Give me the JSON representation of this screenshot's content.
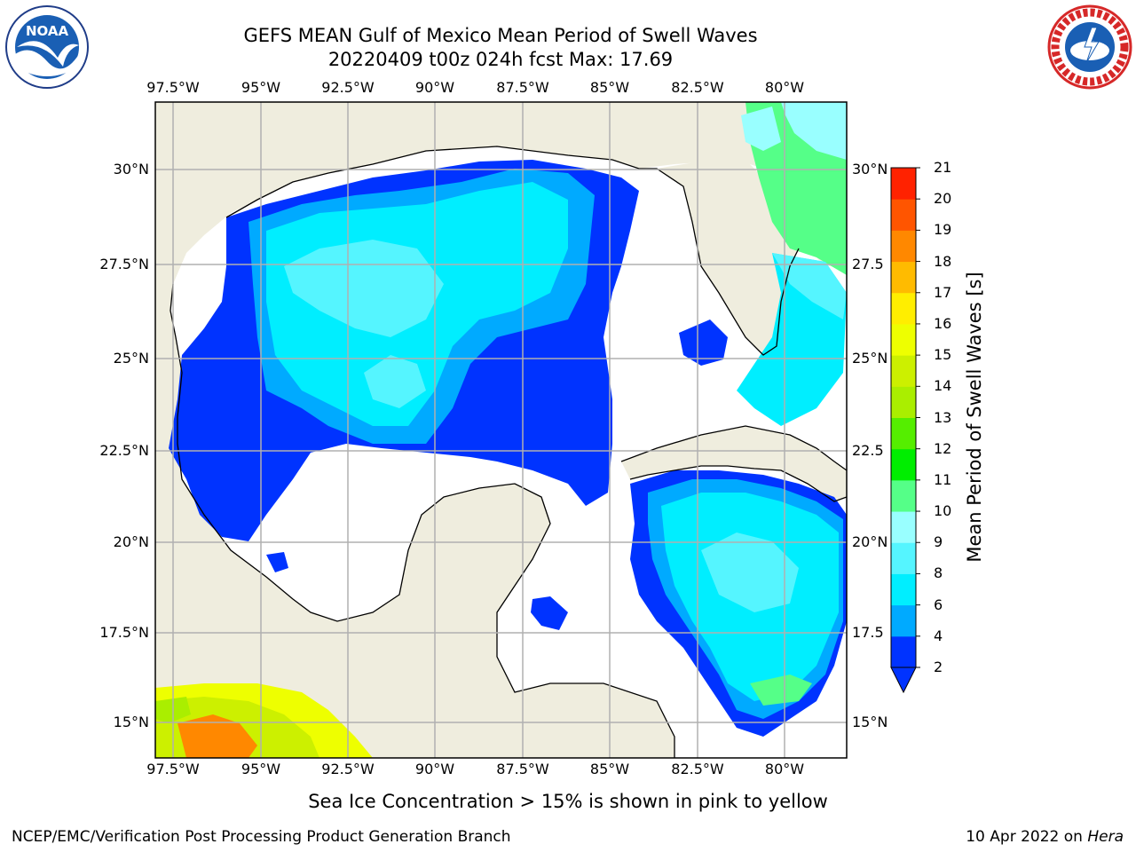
{
  "title_line1": "GEFS MEAN Gulf of Mexico Mean Period of Swell Waves",
  "title_line2": "20220409 t00z 024h fcst   Max: 17.69",
  "lon_labels": [
    "97.5°W",
    "95°W",
    "92.5°W",
    "90°W",
    "87.5°W",
    "85°W",
    "82.5°W",
    "80°W"
  ],
  "lat_labels": [
    "30°N",
    "27.5°N",
    "25°N",
    "22.5°N",
    "20°N",
    "17.5°N",
    "15°N"
  ],
  "right_lat_labels": [
    "30°N",
    "27.5",
    "25°N",
    "22.5",
    "20°N",
    "17.5",
    "15°N"
  ],
  "colorbar": {
    "label": "Mean Period of Swell Waves [s]",
    "ticks": [
      "2",
      "4",
      "6",
      "8",
      "9",
      "10",
      "11",
      "12",
      "13",
      "14",
      "15",
      "16",
      "17",
      "18",
      "19",
      "20",
      "21"
    ],
    "colors": [
      "#0033ff",
      "#00aaff",
      "#00eeff",
      "#55f5ff",
      "#99ffff",
      "#55ff88",
      "#00ee00",
      "#55ee00",
      "#aaee00",
      "#ccf000",
      "#eeff00",
      "#ffee00",
      "#ffbb00",
      "#ff8800",
      "#ff5500",
      "#ff2200",
      "#ff0000"
    ]
  },
  "bottom_note": "Sea Ice Concentration > 15% is shown in pink to yellow",
  "credit": "NCEP/EMC/Verification Post Processing Product Generation Branch",
  "date_prefix": "10 Apr 2022 on ",
  "date_host": "Hera",
  "noaa_logo_text": "NOAA",
  "nws_logo_text": "NATIONAL WEATHER SERVICE",
  "land_color": "#efedde",
  "grid_color": "#b0b0b0"
}
